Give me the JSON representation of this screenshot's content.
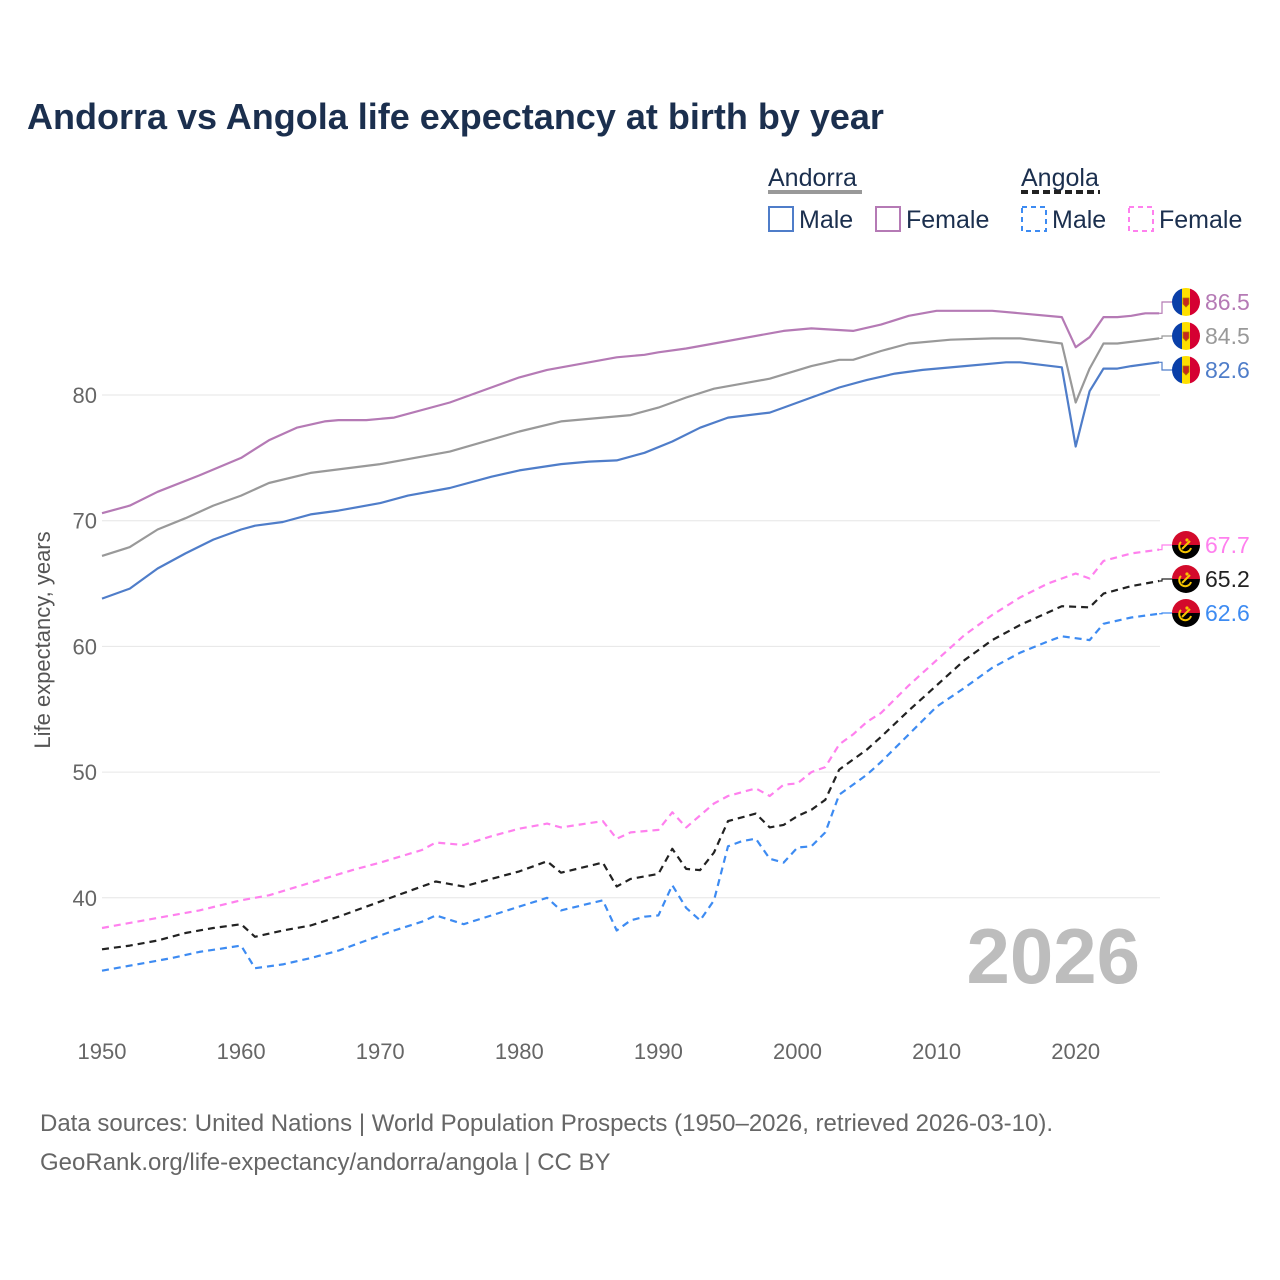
{
  "chart_data": {
    "type": "line",
    "title": "Andorra vs Angola life expectancy at birth by year",
    "xlabel": "",
    "ylabel": "Life expectancy, years",
    "xlim": [
      1950,
      2026
    ],
    "ylim": [
      30,
      90
    ],
    "x_ticks": [
      1950,
      1960,
      1970,
      1980,
      1990,
      2000,
      2010,
      2020
    ],
    "y_ticks": [
      40,
      50,
      60,
      70,
      80
    ],
    "grid": true,
    "legend_position": "top-right",
    "legend": {
      "groups": [
        {
          "label": "Andorra",
          "color": "#999999",
          "style": "solid",
          "items": [
            {
              "label": "Male",
              "color": "#4f7dc9"
            },
            {
              "label": "Female",
              "color": "#b57ab5"
            }
          ]
        },
        {
          "label": "Angola",
          "color": "#222222",
          "style": "dashed",
          "items": [
            {
              "label": "Male",
              "color": "#3d8bf2"
            },
            {
              "label": "Female",
              "color": "#ff80ee"
            }
          ]
        }
      ]
    },
    "watermark_year": "2026",
    "series": [
      {
        "name": "Andorra Female",
        "country": "Andorra",
        "color": "#b57ab5",
        "dashed": false,
        "end_label": "86.5",
        "points": [
          [
            1950,
            70.6
          ],
          [
            1952,
            71.2
          ],
          [
            1954,
            72.3
          ],
          [
            1957,
            73.6
          ],
          [
            1960,
            75
          ],
          [
            1962,
            76.4
          ],
          [
            1964,
            77.4
          ],
          [
            1966,
            77.9
          ],
          [
            1967,
            78
          ],
          [
            1969,
            78
          ],
          [
            1971,
            78.2
          ],
          [
            1975,
            79.4
          ],
          [
            1980,
            81.4
          ],
          [
            1982,
            82
          ],
          [
            1987,
            83
          ],
          [
            1989,
            83.2
          ],
          [
            1990,
            83.4
          ],
          [
            1992,
            83.7
          ],
          [
            1994,
            84.1
          ],
          [
            1999,
            85.1
          ],
          [
            2001,
            85.3
          ],
          [
            2004,
            85.1
          ],
          [
            2006,
            85.6
          ],
          [
            2008,
            86.3
          ],
          [
            2010,
            86.7
          ],
          [
            2014,
            86.7
          ],
          [
            2016,
            86.5
          ],
          [
            2019,
            86.2
          ],
          [
            2020,
            83.8
          ],
          [
            2021,
            84.6
          ],
          [
            2022,
            86.2
          ],
          [
            2023,
            86.2
          ],
          [
            2024,
            86.3
          ],
          [
            2025,
            86.5
          ],
          [
            2026,
            86.5
          ]
        ]
      },
      {
        "name": "Andorra Total",
        "country": "Andorra",
        "color": "#999999",
        "dashed": false,
        "end_label": "84.5",
        "points": [
          [
            1950,
            67.2
          ],
          [
            1952,
            67.9
          ],
          [
            1954,
            69.3
          ],
          [
            1956,
            70.2
          ],
          [
            1958,
            71.2
          ],
          [
            1960,
            72
          ],
          [
            1962,
            73
          ],
          [
            1965,
            73.8
          ],
          [
            1970,
            74.5
          ],
          [
            1975,
            75.5
          ],
          [
            1980,
            77.1
          ],
          [
            1983,
            77.9
          ],
          [
            1988,
            78.4
          ],
          [
            1990,
            79
          ],
          [
            1992,
            79.8
          ],
          [
            1994,
            80.5
          ],
          [
            1996,
            80.9
          ],
          [
            1998,
            81.3
          ],
          [
            2001,
            82.3
          ],
          [
            2003,
            82.8
          ],
          [
            2004,
            82.8
          ],
          [
            2006,
            83.5
          ],
          [
            2008,
            84.1
          ],
          [
            2011,
            84.4
          ],
          [
            2014,
            84.5
          ],
          [
            2016,
            84.5
          ],
          [
            2019,
            84.1
          ],
          [
            2020,
            79.4
          ],
          [
            2021,
            82.1
          ],
          [
            2022,
            84.1
          ],
          [
            2023,
            84.1
          ],
          [
            2026,
            84.5
          ]
        ]
      },
      {
        "name": "Andorra Male",
        "country": "Andorra",
        "color": "#4f7dc9",
        "dashed": false,
        "end_label": "82.6",
        "points": [
          [
            1950,
            63.8
          ],
          [
            1952,
            64.6
          ],
          [
            1954,
            66.2
          ],
          [
            1956,
            67.4
          ],
          [
            1958,
            68.5
          ],
          [
            1960,
            69.3
          ],
          [
            1961,
            69.6
          ],
          [
            1963,
            69.9
          ],
          [
            1965,
            70.5
          ],
          [
            1967,
            70.8
          ],
          [
            1970,
            71.4
          ],
          [
            1972,
            72
          ],
          [
            1975,
            72.6
          ],
          [
            1978,
            73.5
          ],
          [
            1980,
            74
          ],
          [
            1983,
            74.5
          ],
          [
            1985,
            74.7
          ],
          [
            1987,
            74.8
          ],
          [
            1989,
            75.4
          ],
          [
            1991,
            76.3
          ],
          [
            1993,
            77.4
          ],
          [
            1995,
            78.2
          ],
          [
            1998,
            78.6
          ],
          [
            1999,
            79
          ],
          [
            2001,
            79.8
          ],
          [
            2003,
            80.6
          ],
          [
            2005,
            81.2
          ],
          [
            2007,
            81.7
          ],
          [
            2009,
            82
          ],
          [
            2012,
            82.3
          ],
          [
            2015,
            82.6
          ],
          [
            2016,
            82.6
          ],
          [
            2019,
            82.2
          ],
          [
            2020,
            75.9
          ],
          [
            2021,
            80.3
          ],
          [
            2022,
            82.1
          ],
          [
            2023,
            82.1
          ],
          [
            2024,
            82.3
          ],
          [
            2026,
            82.6
          ]
        ]
      },
      {
        "name": "Angola Female",
        "country": "Angola",
        "color": "#ff80ee",
        "dashed": true,
        "end_label": "67.7",
        "points": [
          [
            1950,
            37.6
          ],
          [
            1953,
            38.2
          ],
          [
            1957,
            39
          ],
          [
            1960,
            39.8
          ],
          [
            1962,
            40.2
          ],
          [
            1965,
            41.2
          ],
          [
            1968,
            42.2
          ],
          [
            1970,
            42.8
          ],
          [
            1973,
            43.8
          ],
          [
            1974,
            44.4
          ],
          [
            1976,
            44.2
          ],
          [
            1978,
            44.9
          ],
          [
            1980,
            45.5
          ],
          [
            1982,
            45.9
          ],
          [
            1983,
            45.6
          ],
          [
            1986,
            46.1
          ],
          [
            1987,
            44.7
          ],
          [
            1988,
            45.2
          ],
          [
            1990,
            45.4
          ],
          [
            1991,
            46.8
          ],
          [
            1992,
            45.6
          ],
          [
            1994,
            47.5
          ],
          [
            1995,
            48.1
          ],
          [
            1997,
            48.7
          ],
          [
            1998,
            48.1
          ],
          [
            1999,
            49
          ],
          [
            2000,
            49.1
          ],
          [
            2001,
            50
          ],
          [
            2002,
            50.4
          ],
          [
            2003,
            52.2
          ],
          [
            2004,
            53
          ],
          [
            2005,
            54
          ],
          [
            2006,
            54.7
          ],
          [
            2008,
            56.9
          ],
          [
            2010,
            58.9
          ],
          [
            2012,
            60.9
          ],
          [
            2014,
            62.5
          ],
          [
            2016,
            63.9
          ],
          [
            2018,
            65
          ],
          [
            2020,
            65.8
          ],
          [
            2021,
            65.4
          ],
          [
            2022,
            66.8
          ],
          [
            2024,
            67.4
          ],
          [
            2026,
            67.7
          ]
        ]
      },
      {
        "name": "Angola Total",
        "country": "Angola",
        "color": "#222222",
        "dashed": true,
        "end_label": "65.2",
        "points": [
          [
            1950,
            35.9
          ],
          [
            1952,
            36.2
          ],
          [
            1954,
            36.6
          ],
          [
            1956,
            37.2
          ],
          [
            1958,
            37.6
          ],
          [
            1960,
            37.9
          ],
          [
            1961,
            36.9
          ],
          [
            1963,
            37.4
          ],
          [
            1965,
            37.8
          ],
          [
            1967,
            38.5
          ],
          [
            1969,
            39.3
          ],
          [
            1971,
            40.1
          ],
          [
            1973,
            40.9
          ],
          [
            1974,
            41.3
          ],
          [
            1976,
            40.9
          ],
          [
            1978,
            41.5
          ],
          [
            1980,
            42.1
          ],
          [
            1982,
            42.9
          ],
          [
            1983,
            42
          ],
          [
            1986,
            42.8
          ],
          [
            1987,
            40.9
          ],
          [
            1988,
            41.5
          ],
          [
            1990,
            41.9
          ],
          [
            1991,
            43.9
          ],
          [
            1992,
            42.3
          ],
          [
            1993,
            42.2
          ],
          [
            1994,
            43.6
          ],
          [
            1995,
            46.1
          ],
          [
            1997,
            46.7
          ],
          [
            1998,
            45.6
          ],
          [
            1999,
            45.8
          ],
          [
            2000,
            46.5
          ],
          [
            2001,
            47
          ],
          [
            2002,
            47.8
          ],
          [
            2003,
            50.2
          ],
          [
            2005,
            51.8
          ],
          [
            2006,
            52.8
          ],
          [
            2008,
            54.9
          ],
          [
            2010,
            56.9
          ],
          [
            2012,
            58.9
          ],
          [
            2014,
            60.5
          ],
          [
            2016,
            61.7
          ],
          [
            2018,
            62.7
          ],
          [
            2019,
            63.2
          ],
          [
            2021,
            63.1
          ],
          [
            2022,
            64.2
          ],
          [
            2024,
            64.8
          ],
          [
            2026,
            65.2
          ]
        ]
      },
      {
        "name": "Angola Male",
        "country": "Angola",
        "color": "#3d8bf2",
        "dashed": true,
        "end_label": "62.6",
        "points": [
          [
            1950,
            34.2
          ],
          [
            1955,
            35.2
          ],
          [
            1957,
            35.7
          ],
          [
            1960,
            36.2
          ],
          [
            1961,
            34.4
          ],
          [
            1963,
            34.7
          ],
          [
            1965,
            35.2
          ],
          [
            1967,
            35.8
          ],
          [
            1969,
            36.6
          ],
          [
            1971,
            37.4
          ],
          [
            1973,
            38.1
          ],
          [
            1974,
            38.6
          ],
          [
            1976,
            37.9
          ],
          [
            1978,
            38.6
          ],
          [
            1980,
            39.3
          ],
          [
            1982,
            40
          ],
          [
            1983,
            39
          ],
          [
            1986,
            39.8
          ],
          [
            1987,
            37.4
          ],
          [
            1988,
            38.2
          ],
          [
            1989,
            38.5
          ],
          [
            1990,
            38.6
          ],
          [
            1991,
            41
          ],
          [
            1992,
            39.2
          ],
          [
            1993,
            38.2
          ],
          [
            1994,
            39.8
          ],
          [
            1995,
            44.1
          ],
          [
            1996,
            44.5
          ],
          [
            1997,
            44.7
          ],
          [
            1998,
            43.1
          ],
          [
            1999,
            42.8
          ],
          [
            2000,
            44
          ],
          [
            2001,
            44.1
          ],
          [
            2002,
            45.2
          ],
          [
            2003,
            48.2
          ],
          [
            2005,
            49.8
          ],
          [
            2006,
            50.8
          ],
          [
            2008,
            53
          ],
          [
            2010,
            55.2
          ],
          [
            2012,
            56.7
          ],
          [
            2014,
            58.3
          ],
          [
            2016,
            59.5
          ],
          [
            2018,
            60.4
          ],
          [
            2019,
            60.8
          ],
          [
            2021,
            60.5
          ],
          [
            2022,
            61.8
          ],
          [
            2024,
            62.3
          ],
          [
            2026,
            62.6
          ]
        ]
      }
    ]
  },
  "footer": {
    "source_line": "Data sources: United Nations | World Population Prospects (1950–2026, retrieved 2026-03-10).",
    "url_line": "GeoRank.org/life-expectancy/andorra/angola | CC BY"
  }
}
